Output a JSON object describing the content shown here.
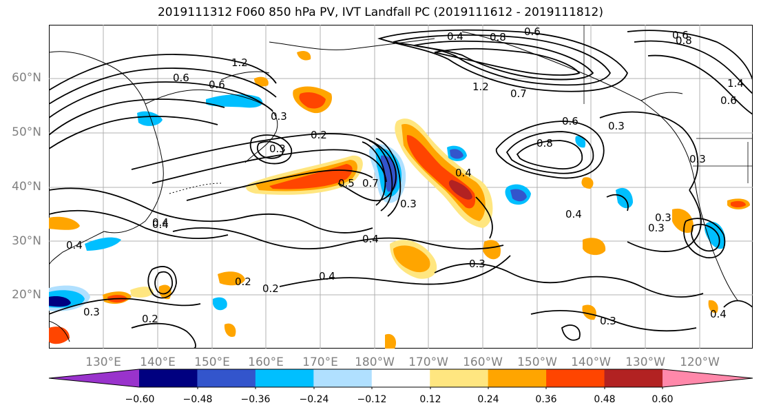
{
  "title": "2019111312 F060 850 hPa PV, IVT Landfall PC (2019111612 - 2019111812)",
  "lat_labels": [
    "60°N",
    "50°N",
    "40°N",
    "30°N",
    "20°N"
  ],
  "lon_labels": [
    "130°E",
    "140°E",
    "150°E",
    "160°E",
    "170°E",
    "180°W",
    "170°W",
    "160°W",
    "150°W",
    "140°W",
    "130°W",
    "120°W"
  ],
  "contour_labels": [
    "0.4",
    "0.8",
    "0.6",
    "1.2",
    "0.6",
    "0.6",
    "0.3",
    "0.2",
    "0.3",
    "0.4",
    "0.5",
    "0.7",
    "0.4",
    "0.3",
    "0.4",
    "0.4",
    "0.2",
    "0.2",
    "0.3",
    "0.8",
    "0.6",
    "0.3",
    "0.3",
    "0.4",
    "0.3",
    "0.3",
    "0.4",
    "0.4",
    "0.2",
    "0.3",
    "0.4",
    "0.3",
    "0.6",
    "0.8",
    "0.6",
    "1.4",
    "1.2",
    "0.7"
  ],
  "colorbar": {
    "ticks": [
      "−0.60",
      "−0.48",
      "−0.36",
      "−0.24",
      "−0.12",
      "0.12",
      "0.24",
      "0.36",
      "0.48",
      "0.60"
    ],
    "colors": [
      "#9933cc",
      "#000080",
      "#3355cc",
      "#00bfff",
      "#b0e0ff",
      "#ffffff",
      "#ffe680",
      "#ffa500",
      "#ff4500",
      "#b22222",
      "#ff88aa",
      "#ff88aa"
    ]
  },
  "fill_colors": {
    "neg_light": "#b0e0ff",
    "neg_mid": "#00bfff",
    "neg_strong": "#3355cc",
    "neg_darker": "#000080",
    "pos_light": "#ffe680",
    "pos_mid": "#ffa500",
    "pos_strong": "#ff4500",
    "pos_darker": "#b22222"
  }
}
